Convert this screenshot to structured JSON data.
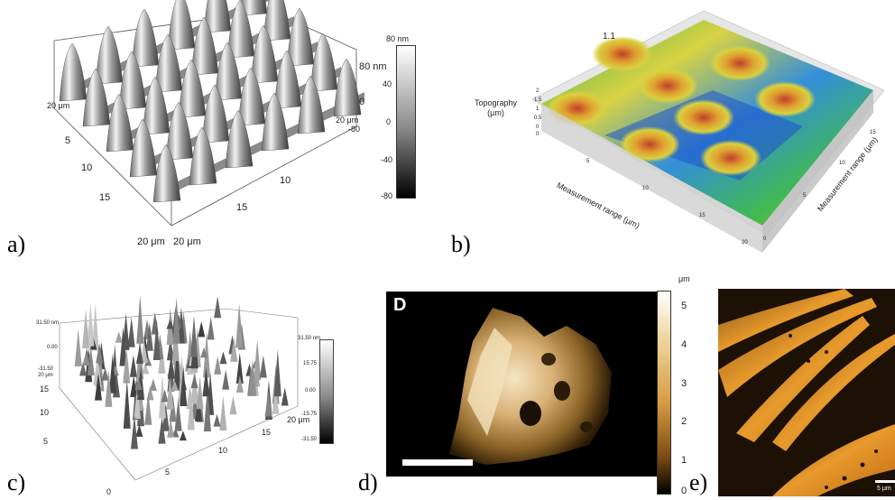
{
  "panels": {
    "a": {
      "label": "a)",
      "z_top": "80 nm",
      "z_mid": "0",
      "z_bot": "-80",
      "y_corner": "20 μm",
      "y_ticks": [
        "5",
        "10",
        "15"
      ],
      "y_end": "20 μm",
      "x_end": "20 μm",
      "x_ticks": [
        "10",
        "15"
      ],
      "right_y_corner": "20 μm",
      "colorbar": {
        "ticks": [
          "80 nm",
          "40",
          "0",
          "-40",
          "-80"
        ]
      }
    },
    "b": {
      "label": "b)",
      "title": "1.1",
      "z_axis_label": "Topography\n(µm)",
      "z_ticks": [
        "2",
        "1.5",
        "1",
        "0.5",
        "0"
      ],
      "x_axis_label": "Measurement range (µm)",
      "y_axis_label": "Measurement range (µm)",
      "x_ticks": [
        "0",
        "5",
        "10",
        "15",
        "20"
      ],
      "y_ticks": [
        "0",
        "5",
        "10",
        "15"
      ]
    },
    "c": {
      "label": "c)",
      "z_top": "31.50 nm",
      "z_mid": "0.00",
      "z_bot": "-31.50",
      "y_corner": "20 μm",
      "y_ticks": [
        "15",
        "10",
        "5"
      ],
      "origin": "0",
      "x_ticks": [
        "5",
        "10",
        "15"
      ],
      "x_end": "20 μm",
      "colorbar": {
        "ticks": [
          "31.50 nm",
          "15.75",
          "0.00",
          "-15.75",
          "-31.50"
        ]
      }
    },
    "d": {
      "label": "d)",
      "letter": "D",
      "unit": "μm",
      "colorbar": {
        "ticks": [
          "5",
          "4",
          "3",
          "2",
          "1",
          "0"
        ]
      }
    },
    "e": {
      "label": "e)",
      "scalebar_label": "5 μm"
    }
  },
  "colors": {
    "afm_gold": "#c8862a",
    "afm_dark": "#1a1208",
    "rainbow_low": "#1d4fc0",
    "rainbow_high": "#c0402a"
  }
}
